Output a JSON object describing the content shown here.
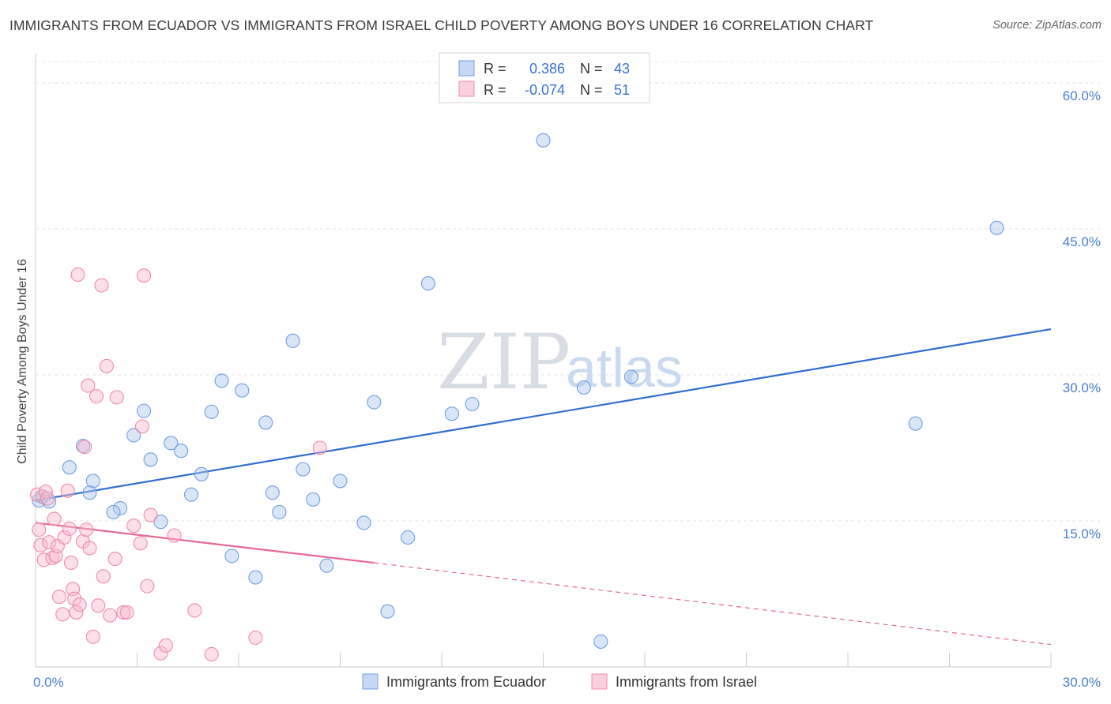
{
  "header": {
    "title": "IMMIGRANTS FROM ECUADOR VS IMMIGRANTS FROM ISRAEL CHILD POVERTY AMONG BOYS UNDER 16 CORRELATION CHART",
    "source": "Source: ZipAtlas.com"
  },
  "watermark": {
    "zip": "ZIP",
    "atlas": "atlas"
  },
  "legend": {
    "r_label": "R =",
    "n_label": "N =",
    "rows": [
      {
        "r": "0.386",
        "n": "43",
        "color": "#6fa0e0"
      },
      {
        "r": "-0.074",
        "n": "51",
        "color": "#f08cab"
      }
    ]
  },
  "chart_data": {
    "type": "scatter",
    "title": "IMMIGRANTS FROM ECUADOR VS IMMIGRANTS FROM ISRAEL CHILD POVERTY AMONG BOYS UNDER 16 CORRELATION CHART",
    "xlabel": "",
    "ylabel": "Child Poverty Among Boys Under 16",
    "xlim": [
      0,
      30
    ],
    "ylim": [
      0,
      63
    ],
    "x_ticks": [
      "0.0%",
      "30.0%"
    ],
    "y_ticks": [
      {
        "value": 15,
        "label": "15.0%"
      },
      {
        "value": 30,
        "label": "30.0%"
      },
      {
        "value": 45,
        "label": "45.0%"
      },
      {
        "value": 60,
        "label": "60.0%"
      }
    ],
    "grid": "horizontal dashed",
    "legend_position": "top-center",
    "series": [
      {
        "name": "Immigrants from Ecuador",
        "color": "#6fa0e0",
        "trend": {
          "x": [
            0,
            30
          ],
          "y": [
            17.1,
            34.7
          ],
          "style": "solid"
        },
        "points": [
          {
            "x": 0.1,
            "y": 17.1
          },
          {
            "x": 0.2,
            "y": 17.5
          },
          {
            "x": 0.4,
            "y": 17.0
          },
          {
            "x": 1.0,
            "y": 20.5
          },
          {
            "x": 1.4,
            "y": 22.7
          },
          {
            "x": 1.7,
            "y": 19.1
          },
          {
            "x": 1.6,
            "y": 17.9
          },
          {
            "x": 2.5,
            "y": 16.3
          },
          {
            "x": 2.3,
            "y": 15.9
          },
          {
            "x": 2.9,
            "y": 23.8
          },
          {
            "x": 3.2,
            "y": 26.3
          },
          {
            "x": 3.4,
            "y": 21.3
          },
          {
            "x": 3.7,
            "y": 14.9
          },
          {
            "x": 4.0,
            "y": 23.0
          },
          {
            "x": 4.3,
            "y": 22.2
          },
          {
            "x": 4.6,
            "y": 17.7
          },
          {
            "x": 4.9,
            "y": 19.8
          },
          {
            "x": 5.2,
            "y": 26.2
          },
          {
            "x": 5.5,
            "y": 29.4
          },
          {
            "x": 5.8,
            "y": 11.4
          },
          {
            "x": 6.1,
            "y": 28.4
          },
          {
            "x": 6.5,
            "y": 9.2
          },
          {
            "x": 6.8,
            "y": 25.1
          },
          {
            "x": 7.0,
            "y": 17.9
          },
          {
            "x": 7.2,
            "y": 15.9
          },
          {
            "x": 7.6,
            "y": 33.5
          },
          {
            "x": 7.9,
            "y": 20.3
          },
          {
            "x": 8.2,
            "y": 17.2
          },
          {
            "x": 8.6,
            "y": 10.4
          },
          {
            "x": 9.0,
            "y": 19.1
          },
          {
            "x": 9.7,
            "y": 14.8
          },
          {
            "x": 10.0,
            "y": 27.2
          },
          {
            "x": 10.4,
            "y": 5.7
          },
          {
            "x": 11.0,
            "y": 13.3
          },
          {
            "x": 11.6,
            "y": 39.4
          },
          {
            "x": 12.3,
            "y": 26.0
          },
          {
            "x": 12.9,
            "y": 27.0
          },
          {
            "x": 15.0,
            "y": 54.1
          },
          {
            "x": 16.2,
            "y": 28.7
          },
          {
            "x": 16.7,
            "y": 2.6
          },
          {
            "x": 17.6,
            "y": 29.8
          },
          {
            "x": 26.0,
            "y": 25.0
          },
          {
            "x": 28.4,
            "y": 45.1
          }
        ]
      },
      {
        "name": "Immigrants from Israel",
        "color": "#f08cab",
        "trend": {
          "x": [
            0,
            10.0
          ],
          "y": [
            14.8,
            10.7
          ],
          "style": "solid"
        },
        "trend_extension": {
          "x": [
            10.0,
            30
          ],
          "y": [
            10.7,
            2.3
          ],
          "style": "dashed"
        },
        "points": [
          {
            "x": 0.05,
            "y": 17.7
          },
          {
            "x": 0.1,
            "y": 14.1
          },
          {
            "x": 0.15,
            "y": 12.5
          },
          {
            "x": 0.25,
            "y": 11.0
          },
          {
            "x": 0.3,
            "y": 18.0
          },
          {
            "x": 0.35,
            "y": 17.3
          },
          {
            "x": 0.4,
            "y": 12.8
          },
          {
            "x": 0.5,
            "y": 11.2
          },
          {
            "x": 0.55,
            "y": 15.2
          },
          {
            "x": 0.6,
            "y": 11.4
          },
          {
            "x": 0.65,
            "y": 12.4
          },
          {
            "x": 0.7,
            "y": 7.2
          },
          {
            "x": 0.8,
            "y": 5.4
          },
          {
            "x": 0.85,
            "y": 13.3
          },
          {
            "x": 0.95,
            "y": 18.1
          },
          {
            "x": 1.0,
            "y": 14.2
          },
          {
            "x": 1.05,
            "y": 10.7
          },
          {
            "x": 1.1,
            "y": 8.0
          },
          {
            "x": 1.15,
            "y": 7.0
          },
          {
            "x": 1.2,
            "y": 5.6
          },
          {
            "x": 1.25,
            "y": 40.3
          },
          {
            "x": 1.3,
            "y": 6.4
          },
          {
            "x": 1.4,
            "y": 12.9
          },
          {
            "x": 1.45,
            "y": 22.6
          },
          {
            "x": 1.5,
            "y": 14.1
          },
          {
            "x": 1.55,
            "y": 28.9
          },
          {
            "x": 1.6,
            "y": 12.2
          },
          {
            "x": 1.7,
            "y": 3.1
          },
          {
            "x": 1.8,
            "y": 27.8
          },
          {
            "x": 1.85,
            "y": 6.3
          },
          {
            "x": 1.95,
            "y": 39.2
          },
          {
            "x": 2.0,
            "y": 9.3
          },
          {
            "x": 2.1,
            "y": 30.9
          },
          {
            "x": 2.2,
            "y": 5.3
          },
          {
            "x": 2.35,
            "y": 11.1
          },
          {
            "x": 2.4,
            "y": 27.7
          },
          {
            "x": 2.6,
            "y": 5.6
          },
          {
            "x": 2.7,
            "y": 5.6
          },
          {
            "x": 2.9,
            "y": 14.5
          },
          {
            "x": 3.1,
            "y": 12.7
          },
          {
            "x": 3.15,
            "y": 24.7
          },
          {
            "x": 3.2,
            "y": 40.2
          },
          {
            "x": 3.3,
            "y": 8.3
          },
          {
            "x": 3.4,
            "y": 15.6
          },
          {
            "x": 3.7,
            "y": 1.4
          },
          {
            "x": 3.85,
            "y": 2.2
          },
          {
            "x": 4.1,
            "y": 13.5
          },
          {
            "x": 4.7,
            "y": 5.8
          },
          {
            "x": 5.2,
            "y": 1.3
          },
          {
            "x": 6.5,
            "y": 3.0
          },
          {
            "x": 8.4,
            "y": 22.5
          }
        ]
      }
    ]
  }
}
